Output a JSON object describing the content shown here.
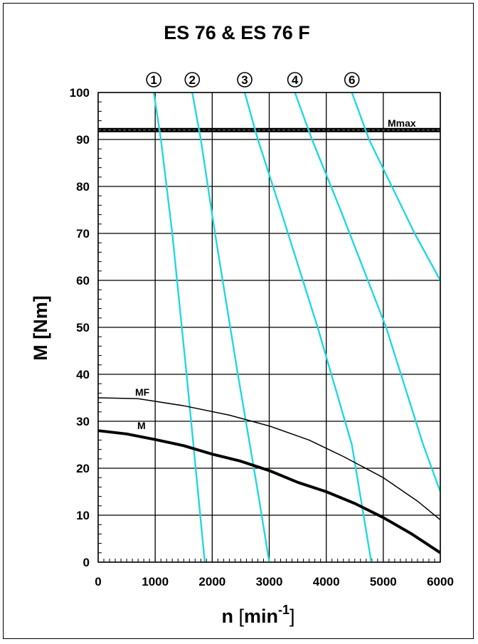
{
  "chart_data": {
    "type": "line",
    "title": "ES 76 & ES 76 F",
    "xlabel": {
      "main": "n ",
      "unit": "min",
      "sup": "-1"
    },
    "ylabel": "M [Nm]",
    "xlim": [
      0,
      6000
    ],
    "ylim": [
      0,
      100
    ],
    "grid": true,
    "xticks": [
      "0",
      "1000",
      "2000",
      "3000",
      "4000",
      "5000",
      "6000"
    ],
    "yticks": [
      "0",
      "10",
      "20",
      "30",
      "40",
      "50",
      "60",
      "70",
      "80",
      "90",
      "100"
    ],
    "mmax": {
      "label": "Mmax",
      "value": 92
    },
    "series": [
      {
        "name": "MF",
        "color": "#000000",
        "weight": "thin",
        "x": [
          0,
          700,
          1500,
          2300,
          3000,
          3700,
          4300,
          5000,
          5600,
          6000
        ],
        "y": [
          35,
          34.8,
          33.3,
          31.3,
          29,
          26,
          22.5,
          18,
          13,
          9
        ]
      },
      {
        "name": "M",
        "color": "#000000",
        "weight": "thick",
        "x": [
          0,
          500,
          1000,
          1500,
          2000,
          2500,
          3000,
          3500,
          4000,
          4500,
          5000,
          5500,
          6000
        ],
        "y": [
          28,
          27.3,
          26.1,
          24.8,
          23,
          21.5,
          19.5,
          17,
          15,
          12.5,
          9.5,
          6,
          2
        ]
      }
    ],
    "speed_curves": [
      {
        "name": "①",
        "color": "#22d7e0",
        "x": [
          975,
          1100,
          1300,
          1550,
          1750,
          1870
        ],
        "y": [
          100,
          90,
          70,
          40,
          15,
          0
        ]
      },
      {
        "name": "②",
        "color": "#22d7e0",
        "x": [
          1650,
          1800,
          2050,
          2450,
          2800,
          3000
        ],
        "y": [
          100,
          90,
          70,
          40,
          15,
          0
        ]
      },
      {
        "name": "③",
        "color": "#22d7e0",
        "x": [
          2570,
          2800,
          3200,
          3850,
          4450,
          4790
        ],
        "y": [
          100,
          90,
          75,
          50,
          25,
          0
        ]
      },
      {
        "name": "④",
        "color": "#22d7e0",
        "x": [
          3450,
          3750,
          4250,
          5050,
          5700,
          6000
        ],
        "y": [
          100,
          90,
          75,
          50,
          25,
          15
        ]
      },
      {
        "name": "⑥",
        "color": "#22d7e0",
        "x": [
          4450,
          4750,
          5150,
          5550,
          6000
        ],
        "y": [
          100,
          90,
          80,
          70,
          60
        ]
      }
    ]
  }
}
